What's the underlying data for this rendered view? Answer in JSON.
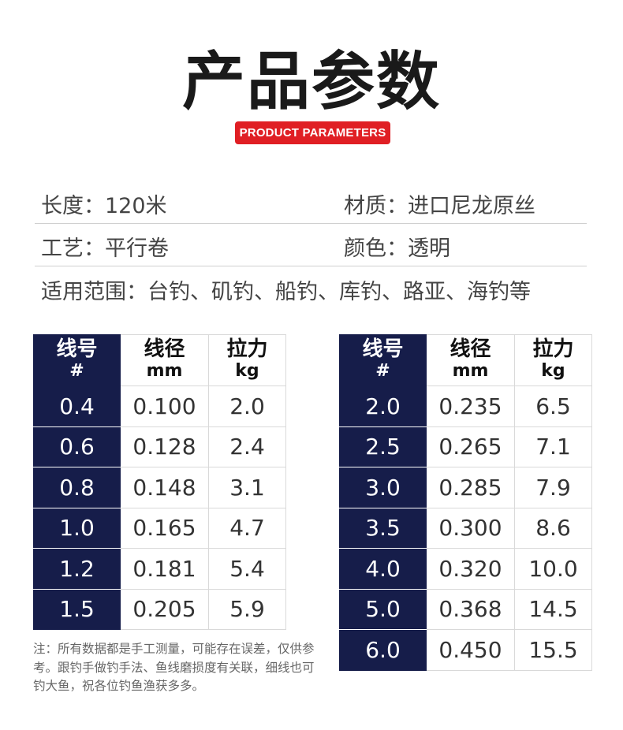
{
  "header": {
    "title": "产品参数",
    "subtitle": "PRODUCT PARAMETERS"
  },
  "specs": {
    "length": "长度：120米",
    "material": "材质：进口尼龙原丝",
    "craft": "工艺：平行卷",
    "color": "颜色：透明",
    "scope": "适用范围：台钓、矶钓、船钓、库钓、路亚、海钓等"
  },
  "table_headers": {
    "line_no": "线号",
    "line_no_unit": "#",
    "diameter": "线径",
    "diameter_unit": "mm",
    "tension": "拉力",
    "tension_unit": "kg"
  },
  "table_left": [
    [
      "0.4",
      "0.100",
      "2.0"
    ],
    [
      "0.6",
      "0.128",
      "2.4"
    ],
    [
      "0.8",
      "0.148",
      "3.1"
    ],
    [
      "1.0",
      "0.165",
      "4.7"
    ],
    [
      "1.2",
      "0.181",
      "5.4"
    ],
    [
      "1.5",
      "0.205",
      "5.9"
    ]
  ],
  "table_right": [
    [
      "2.0",
      "0.235",
      "6.5"
    ],
    [
      "2.5",
      "0.265",
      "7.1"
    ],
    [
      "3.0",
      "0.285",
      "7.9"
    ],
    [
      "3.5",
      "0.300",
      "8.6"
    ],
    [
      "4.0",
      "0.320",
      "10.0"
    ],
    [
      "5.0",
      "0.368",
      "14.5"
    ],
    [
      "6.0",
      "0.450",
      "15.5"
    ]
  ],
  "note": "注：所有数据都是手工测量，可能存在误差，仅供参考。跟钓手做钓手法、鱼线磨损度有关联，细线也可钓大鱼，祝各位钓鱼渔获多多。",
  "colors": {
    "accent_red": "#e01f24",
    "header_navy": "#161d4a"
  }
}
